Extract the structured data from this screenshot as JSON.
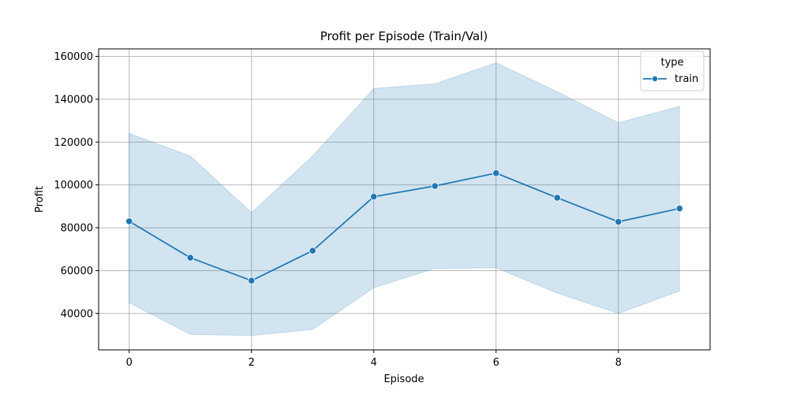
{
  "chart_data": {
    "type": "line",
    "title": "Profit per Episode (Train/Val)",
    "xlabel": "Episode",
    "ylabel": "Profit",
    "xlim": [
      -0.5,
      9.5
    ],
    "ylim": [
      23000,
      163500
    ],
    "xticks": [
      0,
      2,
      4,
      6,
      8
    ],
    "yticks": [
      40000,
      60000,
      80000,
      100000,
      120000,
      140000,
      160000
    ],
    "grid": true,
    "legend": {
      "title": "type",
      "position": "top-right"
    },
    "colors": {
      "line": "#1f77b4",
      "band": "#1f77b4",
      "grid": "#b0b0b0"
    },
    "series": [
      {
        "name": "train",
        "x": [
          0,
          1,
          2,
          3,
          4,
          5,
          6,
          7,
          8,
          9
        ],
        "values": [
          83000,
          66000,
          55300,
          69300,
          94500,
          99500,
          105500,
          94000,
          82800,
          89000
        ],
        "lower": [
          45000,
          30200,
          29700,
          32500,
          52000,
          61000,
          61300,
          49500,
          40000,
          50500
        ],
        "upper": [
          124000,
          113500,
          87000,
          113500,
          145000,
          147200,
          157000,
          143500,
          129000,
          136700
        ]
      }
    ]
  }
}
